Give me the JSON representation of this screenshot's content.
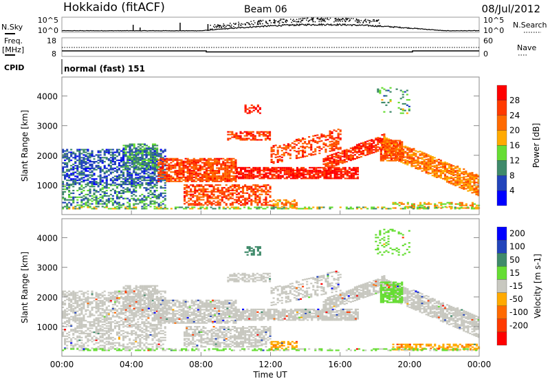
{
  "header": {
    "station": "Hokkaido (fitACF)",
    "beam": "Beam 06",
    "date": "08/Jul/2012"
  },
  "nsky": {
    "label": "N.Sky",
    "right_label": "N.Search",
    "ticks": [
      "10^5",
      "10^0"
    ]
  },
  "freq": {
    "label_line1": "Freq.",
    "label_line2": "[MHz]",
    "ticks": [
      "18",
      "8"
    ],
    "right_ticks": [
      "60",
      "0"
    ],
    "right_label": "Nave",
    "freq_mhz": 10.5,
    "nave": 22
  },
  "cpid": {
    "label": "CPID",
    "value": "normal (fast) 151"
  },
  "chart_data": [
    {
      "type": "heatmap",
      "name": "power",
      "ylabel": "Slant Range [km]",
      "xlabel": "Time UT",
      "ylim": [
        0,
        4640
      ],
      "xlim": [
        0,
        24
      ],
      "yticks": [
        1000,
        2000,
        3000,
        4000
      ],
      "ytick_labels": [
        "1000",
        "2000",
        "3000",
        "4000"
      ],
      "colorbar": {
        "label": "Power [dB]",
        "ticks": [
          "28",
          "24",
          "20",
          "16",
          "12",
          "8",
          "4"
        ],
        "colors": [
          "#ff0000",
          "#ff3a00",
          "#ff6a00",
          "#ffaa00",
          "#66dd33",
          "#3f8a6a",
          "#2244bb",
          "#0000ff"
        ]
      }
    },
    {
      "type": "heatmap",
      "name": "velocity",
      "ylabel": "Slant Range [km]",
      "xlabel": "Time UT",
      "ylim": [
        0,
        4640
      ],
      "xlim": [
        0,
        24
      ],
      "yticks": [
        1000,
        2000,
        3000,
        4000
      ],
      "ytick_labels": [
        "1000",
        "2000",
        "3000",
        "4000"
      ],
      "colorbar": {
        "label": "Velocity [m s-1]",
        "ticks": [
          "200",
          "100",
          "50",
          "15",
          "-15",
          "-50",
          "-100",
          "-200"
        ],
        "colors": [
          "#0000ff",
          "#2244bb",
          "#3f8a6a",
          "#66dd33",
          "#c8c8c0",
          "#ffaa00",
          "#ff6a00",
          "#ff3a00",
          "#ff0000"
        ]
      }
    }
  ],
  "scatter_regions": [
    [
      0,
      6,
      1000,
      2200,
      1000,
      2200,
      7,
      0,
      0.55
    ],
    [
      0,
      6,
      250,
      1000,
      250,
      1000,
      10,
      0,
      0.45
    ],
    [
      3.5,
      5.5,
      1500,
      2400,
      1500,
      2400,
      10,
      0,
      0.6
    ],
    [
      5.5,
      10,
      1100,
      1900,
      1100,
      1900,
      25,
      0,
      0.75
    ],
    [
      7,
      12,
      300,
      1000,
      300,
      1000,
      25,
      0,
      0.6
    ],
    [
      10,
      17,
      1200,
      1600,
      1200,
      1600,
      29,
      0,
      0.8
    ],
    [
      9.5,
      12,
      2500,
      2800,
      2500,
      2800,
      26,
      0,
      0.6
    ],
    [
      10.5,
      11.4,
      3400,
      3700,
      3400,
      3700,
      29,
      70,
      0.6
    ],
    [
      12,
      16,
      1700,
      2300,
      2200,
      2900,
      25,
      0,
      0.45
    ],
    [
      15,
      18.5,
      1500,
      1900,
      2200,
      2700,
      27,
      0,
      0.8
    ],
    [
      18.5,
      24,
      2000,
      2600,
      600,
      1300,
      21,
      0,
      0.75
    ],
    [
      18,
      20,
      3400,
      4300,
      3400,
      4300,
      12,
      30,
      0.15
    ],
    [
      18.3,
      19.6,
      1800,
      2500,
      1800,
      2500,
      24,
      30,
      0.7
    ],
    [
      12,
      13.5,
      200,
      500,
      200,
      500,
      20,
      -40,
      0.6
    ],
    [
      19,
      24,
      200,
      400,
      200,
      400,
      18,
      -40,
      0.5
    ],
    [
      0,
      24,
      180,
      250,
      180,
      250,
      14,
      20,
      0.5
    ]
  ],
  "xaxis": {
    "ticks": [
      "00:00",
      "04:00",
      "08:00",
      "12:00",
      "16:00",
      "20:00",
      "00:00"
    ],
    "label": "Time UT"
  }
}
